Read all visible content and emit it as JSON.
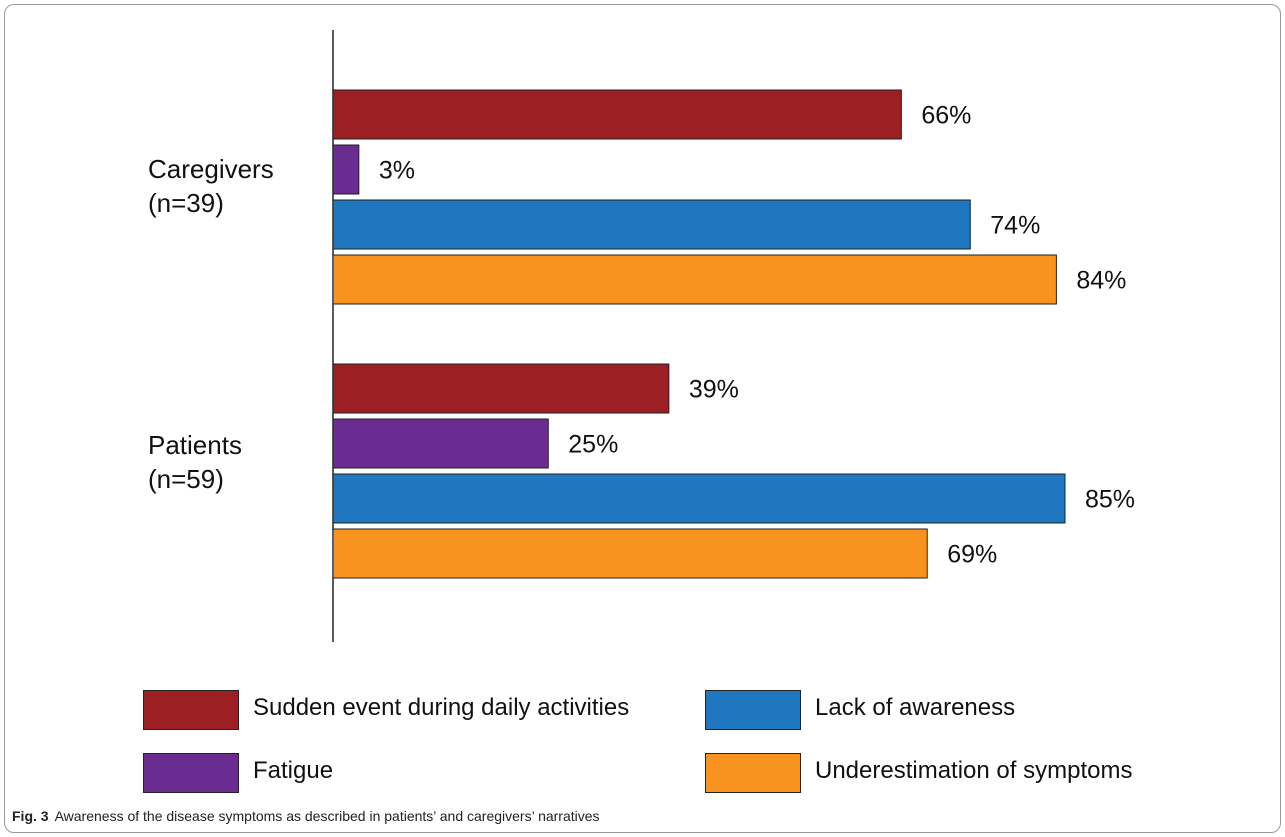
{
  "chart_data": {
    "type": "bar",
    "orientation": "horizontal",
    "categories": [
      "Caregivers\n(n=39)",
      "Patients\n(n=59)"
    ],
    "category_lines": [
      [
        "Caregivers",
        "(n=39)"
      ],
      [
        "Patients",
        "(n=59)"
      ]
    ],
    "series": [
      {
        "name": "Sudden event during daily activities",
        "values": [
          66,
          39
        ],
        "color": "#9b1f23"
      },
      {
        "name": "Fatigue",
        "values": [
          3,
          25
        ],
        "color": "#6a2c91"
      },
      {
        "name": "Lack of awareness",
        "values": [
          74,
          85
        ],
        "color": "#1f77c0"
      },
      {
        "name": "Underestimation of symptoms",
        "values": [
          84,
          69
        ],
        "color": "#f7931e"
      }
    ],
    "value_suffix": "%",
    "xlim": [
      0,
      100
    ],
    "grid": false,
    "legend_position": "bottom"
  },
  "caption": {
    "label": "Fig. 3",
    "text": "Awareness of the disease symptoms as described in patients’ and caregivers’ narratives"
  }
}
